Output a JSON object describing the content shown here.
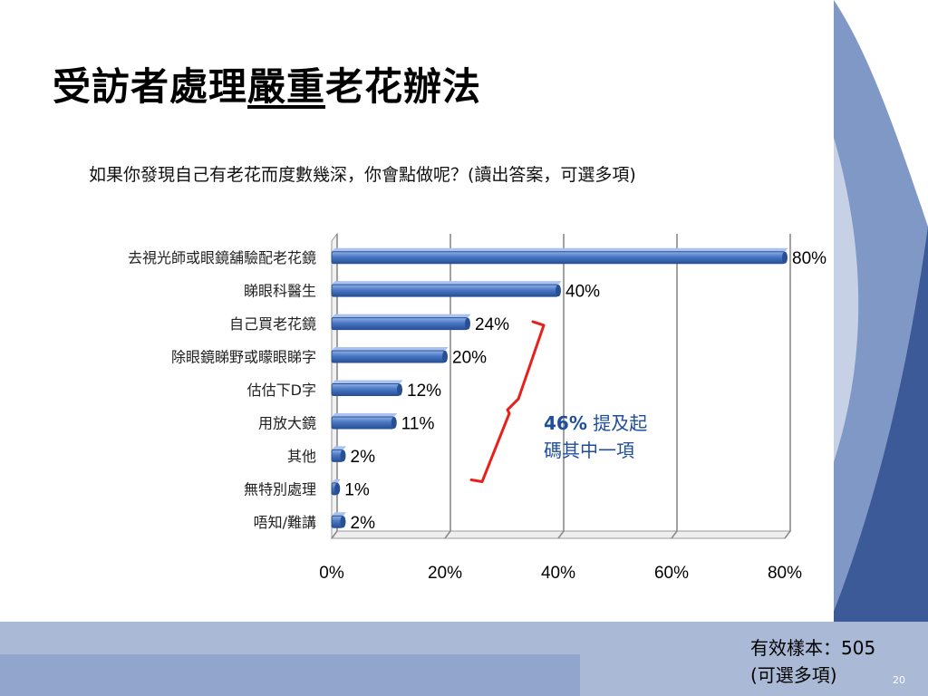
{
  "slide": {
    "title_part1": "受訪者處理",
    "title_part2": "嚴重",
    "title_part3": "老花辦法",
    "question": "如果你發現自己有老花而度數幾深，你會點做呢？(讀出答案，可選多項)",
    "sample_line1": "有效樣本：505",
    "sample_line2": "(可選多項)",
    "page_number": "20"
  },
  "annotation": {
    "pct": "46%",
    "text1": " 提及起",
    "text2": "碼其中一項",
    "bracket_color": "#e8201c",
    "text_color": "#1f4e9c"
  },
  "theme": {
    "bar_color": "#4a78c4",
    "bar_edge": "#274f94",
    "deco_dark": "#3c5a97",
    "deco_light": "#a9b9d6"
  },
  "chart_data": {
    "type": "bar",
    "orientation": "horizontal",
    "categories": [
      "去視光師或眼鏡舖驗配老花鏡",
      "睇眼科醫生",
      "自己買老花鏡",
      "除眼鏡睇野或矇眼睇字",
      "估估下D字",
      "用放大鏡",
      "其他",
      "無特別處理",
      "唔知/難講"
    ],
    "values": [
      80,
      40,
      24,
      20,
      12,
      11,
      2,
      1,
      2
    ],
    "value_labels": [
      "80%",
      "40%",
      "24%",
      "20%",
      "12%",
      "11%",
      "2%",
      "1%",
      "2%"
    ],
    "xlim": [
      0,
      80
    ],
    "xticks": [
      "0%",
      "20%",
      "40%",
      "60%",
      "80%"
    ],
    "grid": true,
    "title": "",
    "xlabel": "",
    "ylabel": ""
  }
}
